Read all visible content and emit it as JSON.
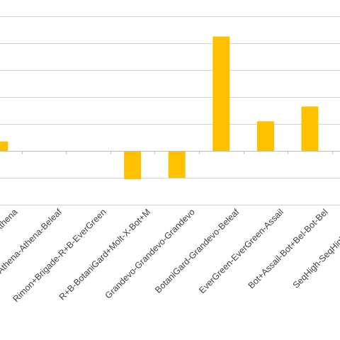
{
  "chart_data": {
    "type": "bar",
    "title": "",
    "xlabel": "",
    "ylabel": "",
    "categories": [
      "Beleaf-Beleaf-Athena",
      "Athena-Athena-Beleaf",
      "Rimon+Brigade-R+B-EverGreen",
      "R+B-BotaniGard+Molt-X-Bot+M",
      "Grandevo-Grandevo-Grandevo",
      "BotaniGard-Grandevo-Beleaf",
      "EverGreen-EverGreen-Assail",
      "Bot+Assail-Bot+Bel-Bot-Bel",
      "SeqHigh-SeqHigh-SeqHigh"
    ],
    "series": [
      {
        "values": [
          0.35,
          0,
          0,
          -1.05,
          -1.0,
          4.25,
          1.1,
          1.65,
          0
        ]
      }
    ],
    "ylim": [
      -2,
      5.5
    ],
    "grid": true,
    "legend": "none",
    "colors": {
      "bar": "#FFC000",
      "grid": "#d4d4d4",
      "axis": "#bfbfbf",
      "label": "#404040"
    }
  }
}
